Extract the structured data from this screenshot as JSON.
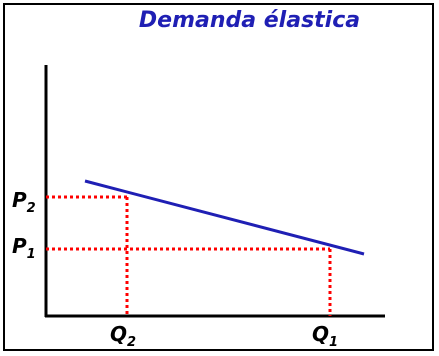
{
  "title": "Demanda élastica",
  "labels": {
    "p2": {
      "main": "P",
      "sub": "2"
    },
    "p1": {
      "main": "P",
      "sub": "1"
    },
    "q2": {
      "main": "Q",
      "sub": "2"
    },
    "q1": {
      "main": "Q",
      "sub": "1"
    }
  },
  "colors": {
    "title": "#1f1fb4",
    "demand_line": "#1f1fb4",
    "guides": "#ff0000",
    "axes": "#000000"
  }
}
